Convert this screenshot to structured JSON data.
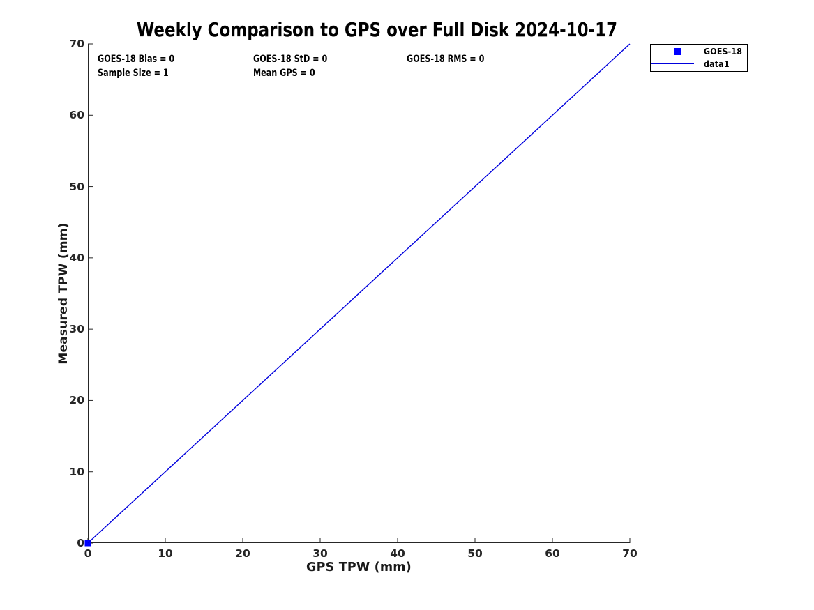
{
  "chart": {
    "title": "Weekly Comparison to GPS over Full Disk 2024-10-17",
    "xlabel": "GPS TPW (mm)",
    "ylabel": "Measured TPW (mm)",
    "annotations": {
      "bias": "GOES-18 Bias = 0",
      "std": "GOES-18 StD = 0",
      "rms": "GOES-18 RMS = 0",
      "sample_size": "Sample Size = 1",
      "mean_gps": "Mean GPS = 0"
    },
    "legend": {
      "entries": [
        {
          "label": "GOES-18",
          "swatch": "square-marker",
          "color": "#0000FF"
        },
        {
          "label": "data1",
          "swatch": "line",
          "color": "#0000DD"
        }
      ]
    },
    "colors": {
      "background": "#FFFFFF",
      "axis": "#262626",
      "title_text": "#000000",
      "annotation_text": "#000000",
      "series_marker_blue": "#0000FF",
      "series_line_blue": "#0000DD",
      "legend_border": "#000000"
    }
  },
  "chart_data": {
    "type": "scatter",
    "title": "Weekly Comparison to GPS over Full Disk 2024-10-17",
    "xlabel": "GPS TPW (mm)",
    "ylabel": "Measured TPW (mm)",
    "xlim": [
      0,
      70
    ],
    "ylim": [
      0,
      70
    ],
    "x_ticks": [
      0,
      10,
      20,
      30,
      40,
      50,
      60,
      70
    ],
    "y_ticks": [
      0,
      10,
      20,
      30,
      40,
      50,
      60,
      70
    ],
    "grid": false,
    "legend_position": "outside-top-right",
    "series": [
      {
        "name": "GOES-18",
        "type": "scatter",
        "marker": "square",
        "marker_size": 9,
        "color": "#0000FF",
        "points": [
          [
            0,
            0
          ]
        ]
      },
      {
        "name": "data1",
        "type": "line",
        "color": "#0000DD",
        "width": 1.4,
        "points": [
          [
            0,
            0
          ],
          [
            70,
            70
          ]
        ]
      }
    ],
    "stats": {
      "goes18_bias": 0,
      "goes18_std": 0,
      "goes18_rms": 0,
      "sample_size": 1,
      "mean_gps": 0
    }
  }
}
